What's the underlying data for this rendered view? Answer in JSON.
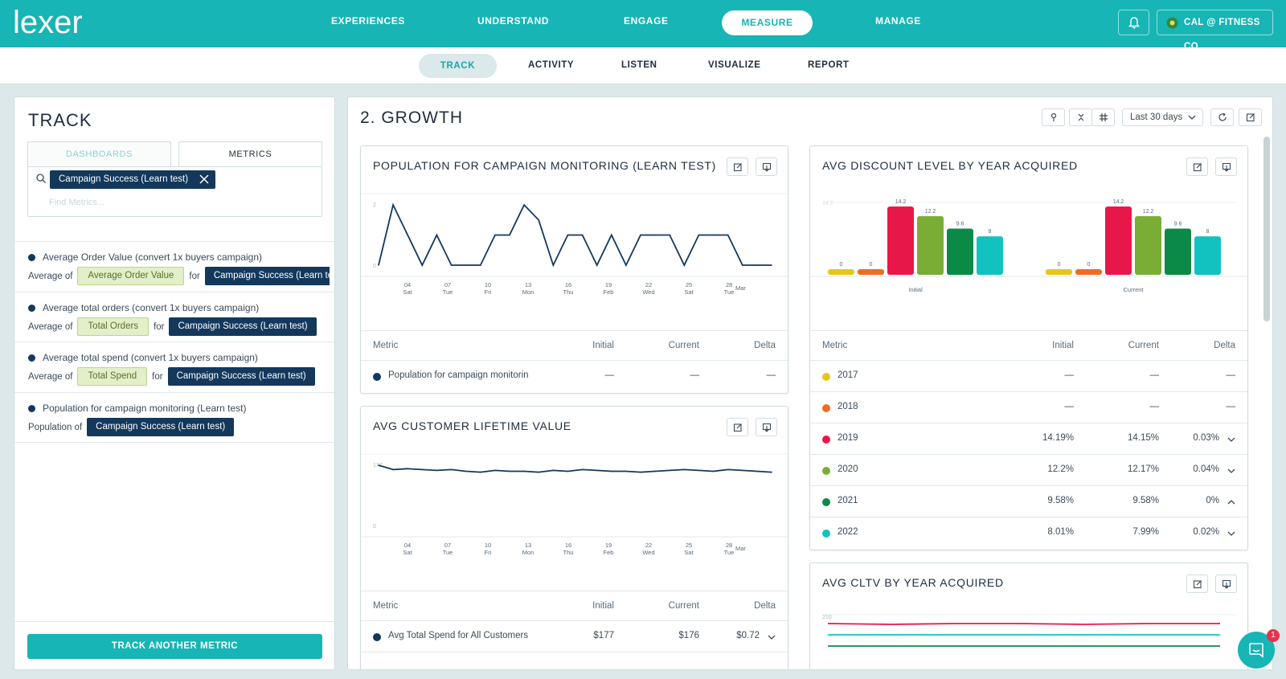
{
  "app": {
    "logo": "lexer",
    "org_label": "CAL @ FITNESS CO"
  },
  "nav": {
    "items": [
      "EXPERIENCES",
      "UNDERSTAND",
      "ENGAGE",
      "MEASURE",
      "MANAGE"
    ],
    "active": "MEASURE"
  },
  "subnav": {
    "items": [
      "TRACK",
      "ACTIVITY",
      "LISTEN",
      "VISUALIZE",
      "REPORT"
    ],
    "active": "TRACK"
  },
  "track": {
    "title": "TRACK",
    "tabs": [
      "DASHBOARDS",
      "METRICS"
    ],
    "search": {
      "chip": "Campaign Success (Learn test)",
      "placeholder": "Find Metrics..."
    },
    "metrics": [
      {
        "title": "Average Order Value (convert 1x buyers campaign)",
        "prefix": "Average of",
        "pill": "Average Order Value",
        "for": "for",
        "segment": "Campaign Success (Learn test)"
      },
      {
        "title": "Average total orders (convert 1x buyers campaign)",
        "prefix": "Average of",
        "pill": "Total Orders",
        "for": "for",
        "segment": "Campaign Success (Learn test)"
      },
      {
        "title": "Average total spend (convert 1x buyers campaign)",
        "prefix": "Average of",
        "pill": "Total Spend",
        "for": "for",
        "segment": "Campaign Success (Learn test)"
      },
      {
        "title": "Population for campaign monitoring (Learn test)",
        "prefix": "Population of",
        "segment": "Campaign Success (Learn test)"
      }
    ],
    "button": "TRACK ANOTHER METRIC"
  },
  "dashboard": {
    "title": "2. GROWTH",
    "range": "Last 30 days",
    "table_headers": {
      "metric": "Metric",
      "initial": "Initial",
      "current": "Current",
      "delta": "Delta"
    },
    "pop_card": {
      "title": "POPULATION FOR CAMPAIGN MONITORING (LEARN TEST)",
      "row": {
        "label": "Population for campaign monitoring (Learn test)",
        "initial": "—",
        "current": "—",
        "delta": "—"
      }
    },
    "clv_card": {
      "title": "AVG CUSTOMER LIFETIME VALUE",
      "row": {
        "label": "Avg Total Spend for All Customers",
        "initial": "$177",
        "current": "$176",
        "delta": "$0.72"
      }
    },
    "disc_card": {
      "title": "AVG DISCOUNT LEVEL BY YEAR ACQUIRED",
      "rows": [
        {
          "year": "2017",
          "initial": "—",
          "current": "—",
          "delta": "—",
          "color": "#e6c619"
        },
        {
          "year": "2018",
          "initial": "—",
          "current": "—",
          "delta": "—",
          "color": "#ef6c24"
        },
        {
          "year": "2019",
          "initial": "14.19%",
          "current": "14.15%",
          "delta": "0.03%",
          "color": "#e8174a"
        },
        {
          "year": "2020",
          "initial": "12.2%",
          "current": "12.17%",
          "delta": "0.04%",
          "color": "#79ad35"
        },
        {
          "year": "2021",
          "initial": "9.58%",
          "current": "9.58%",
          "delta": "0%",
          "color": "#0b8a47"
        },
        {
          "year": "2022",
          "initial": "8.01%",
          "current": "7.99%",
          "delta": "0.02%",
          "color": "#11c2c0"
        }
      ]
    },
    "cltv_card": {
      "title": "AVG CLTV BY YEAR ACQUIRED",
      "ytick": "210"
    }
  },
  "chart_data": [
    {
      "type": "line",
      "title": "POPULATION FOR CAMPAIGN MONITORING (LEARN TEST)",
      "x_ticks": [
        {
          "d": "04",
          "w": "Sat"
        },
        {
          "d": "07",
          "w": "Tue"
        },
        {
          "d": "10",
          "w": "Fri"
        },
        {
          "d": "13",
          "w": "Mon"
        },
        {
          "d": "16",
          "w": "Thu"
        },
        {
          "d": "19",
          "w": "Feb"
        },
        {
          "d": "22",
          "w": "Wed"
        },
        {
          "d": "25",
          "w": "Sat"
        },
        {
          "d": "28",
          "w": "Tue",
          "extra": "Mar"
        }
      ],
      "ylim": [
        0,
        2
      ],
      "y_ticks": [
        "2",
        "0"
      ],
      "values": [
        0,
        2,
        1,
        0,
        1,
        0,
        0,
        0,
        1,
        1,
        2,
        1.5,
        0,
        1,
        1,
        0,
        1,
        0,
        1,
        1,
        1,
        0,
        1,
        1,
        1,
        0,
        0,
        0
      ]
    },
    {
      "type": "line",
      "title": "AVG CUSTOMER LIFETIME VALUE",
      "x_ticks": [
        {
          "d": "04",
          "w": "Sat"
        },
        {
          "d": "07",
          "w": "Tue"
        },
        {
          "d": "10",
          "w": "Fri"
        },
        {
          "d": "13",
          "w": "Mon"
        },
        {
          "d": "16",
          "w": "Thu"
        },
        {
          "d": "19",
          "w": "Feb"
        },
        {
          "d": "22",
          "w": "Wed"
        },
        {
          "d": "25",
          "w": "Sat"
        },
        {
          "d": "28",
          "w": "Tue",
          "extra": "Mar"
        }
      ],
      "ylim": [
        0,
        177
      ],
      "y_ticks": [
        "177",
        "0"
      ],
      "values": [
        177,
        176.5,
        176.6,
        176.5,
        176.4,
        176.5,
        176.3,
        176.2,
        176.4,
        176.3,
        176.3,
        176.2,
        176.4,
        176.3,
        176.5,
        176.4,
        176.3,
        176.3,
        176.2,
        176.3,
        176.4,
        176.5,
        176.4,
        176.3,
        176.5,
        176.4,
        176.3,
        176.2
      ]
    },
    {
      "type": "bar",
      "title": "AVG DISCOUNT LEVEL BY YEAR ACQUIRED",
      "categories": [
        "Initial",
        "Current"
      ],
      "series": [
        {
          "name": "2017",
          "values": [
            0,
            0
          ],
          "color": "#e6c619"
        },
        {
          "name": "2018",
          "values": [
            0,
            0
          ],
          "color": "#ef6c24"
        },
        {
          "name": "2019",
          "values": [
            14.2,
            14.2
          ],
          "color": "#e8174a"
        },
        {
          "name": "2020",
          "values": [
            12.2,
            12.2
          ],
          "color": "#79ad35"
        },
        {
          "name": "2021",
          "values": [
            9.6,
            9.6
          ],
          "color": "#0b8a47"
        },
        {
          "name": "2022",
          "values": [
            8,
            8
          ],
          "color": "#11c2c0"
        }
      ],
      "ylim": [
        0,
        14.2
      ],
      "y_ticks": [
        "14.2"
      ]
    }
  ]
}
